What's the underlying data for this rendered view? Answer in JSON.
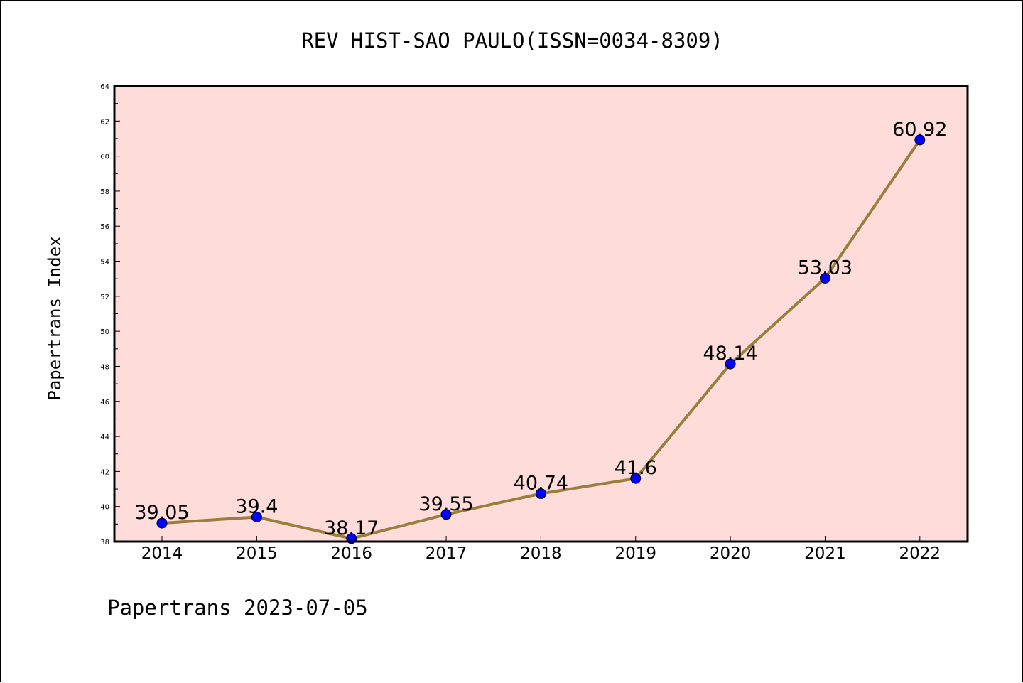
{
  "chart_data": {
    "type": "line",
    "title": "REV HIST-SAO PAULO(ISSN=0034-8309)",
    "xlabel": "",
    "ylabel": "Papertrans Index",
    "footer": "Papertrans 2023-07-05",
    "categories": [
      "2014",
      "2015",
      "2016",
      "2017",
      "2018",
      "2019",
      "2020",
      "2021",
      "2022"
    ],
    "series": [
      {
        "values": [
          39.05,
          39.4,
          38.17,
          39.55,
          40.74,
          41.6,
          48.14,
          53.03,
          60.92
        ],
        "labels": [
          "39.05",
          "39.4",
          "38.17",
          "39.55",
          "40.74",
          "41.6",
          "48.14",
          "53.03",
          "60.92"
        ]
      }
    ],
    "ylim": [
      38,
      64
    ],
    "yticks": [
      38,
      40,
      42,
      44,
      46,
      48,
      50,
      52,
      54,
      56,
      58,
      60,
      62,
      64
    ],
    "grid": false,
    "colors": {
      "plot_background": "#fddcd9",
      "line": "#9b7d3c",
      "marker": "#0000ff",
      "axis": "#000000"
    }
  }
}
